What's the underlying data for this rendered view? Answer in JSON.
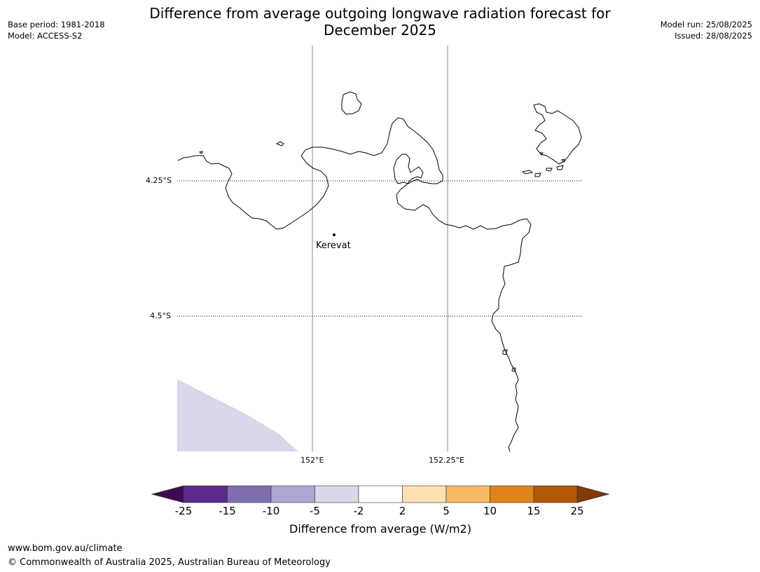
{
  "title_line1": "Difference from average outgoing longwave radiation forecast for",
  "title_line2": "December 2025",
  "meta_left": [
    "Base period: 1981-2018",
    "Model: ACCESS-S2"
  ],
  "meta_right": [
    "Model run: 25/08/2025",
    "Issued: 28/08/2025"
  ],
  "gridlines": {
    "latitudes": [
      "4.25°S",
      "4.5°S"
    ],
    "longitudes": [
      "152°E",
      "152.25°E"
    ]
  },
  "places": [
    {
      "name": "Kerevat"
    }
  ],
  "colorbar": {
    "label": "Difference from average (W/m2)",
    "ticks": [
      "-25",
      "-15",
      "-10",
      "-5",
      "-2",
      "2",
      "5",
      "10",
      "15",
      "25"
    ],
    "colors": [
      "#3f0a52",
      "#5c2a8c",
      "#7f6db0",
      "#aea6d2",
      "#d8d8ea",
      "#ffffff",
      "#fde0b4",
      "#fbb862",
      "#e08318",
      "#b35806",
      "#7f3b08"
    ]
  },
  "shaded_region_category": "-5 to -2",
  "footer": [
    "www.bom.gov.au/climate",
    "© Commonwealth of Australia 2025, Australian Bureau of Meteorology"
  ]
}
